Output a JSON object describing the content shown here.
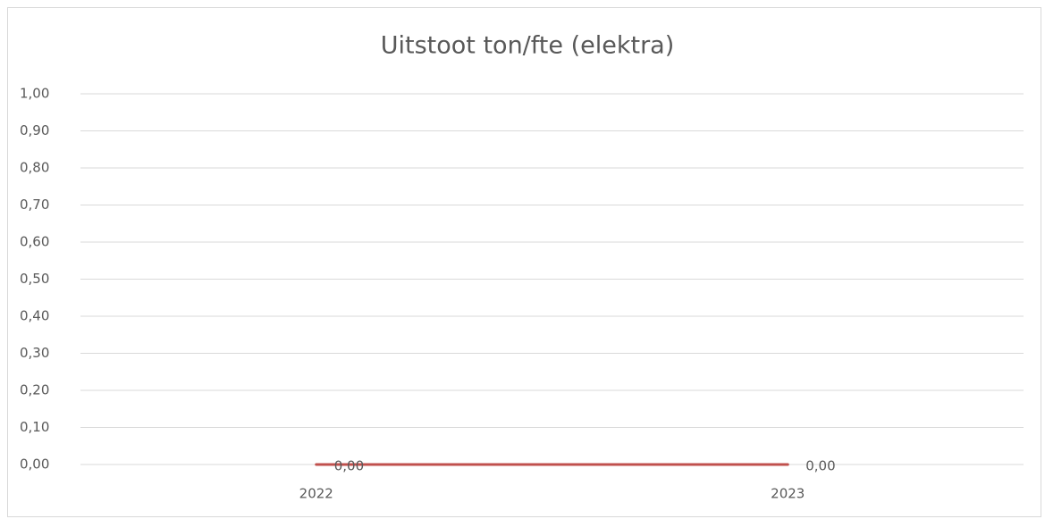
{
  "chart_data": {
    "type": "line",
    "title": "Uitstoot ton/fte (elektra)",
    "categories": [
      "2022",
      "2023"
    ],
    "values": [
      0,
      0
    ],
    "value_labels": [
      "0,00",
      "0,00"
    ],
    "color": "#c0504d",
    "ylim": [
      0,
      1
    ],
    "yticks": [
      {
        "value": 0,
        "label": "0,00"
      },
      {
        "value": 0.1,
        "label": "0,10"
      },
      {
        "value": 0.2,
        "label": "0,20"
      },
      {
        "value": 0.3,
        "label": "0,30"
      },
      {
        "value": 0.4,
        "label": "0,40"
      },
      {
        "value": 0.5,
        "label": "0,50"
      },
      {
        "value": 0.6,
        "label": "0,60"
      },
      {
        "value": 0.7,
        "label": "0,70"
      },
      {
        "value": 0.8,
        "label": "0,80"
      },
      {
        "value": 0.9,
        "label": "0,90"
      },
      {
        "value": 1,
        "label": "1,00"
      }
    ],
    "grid": true
  }
}
